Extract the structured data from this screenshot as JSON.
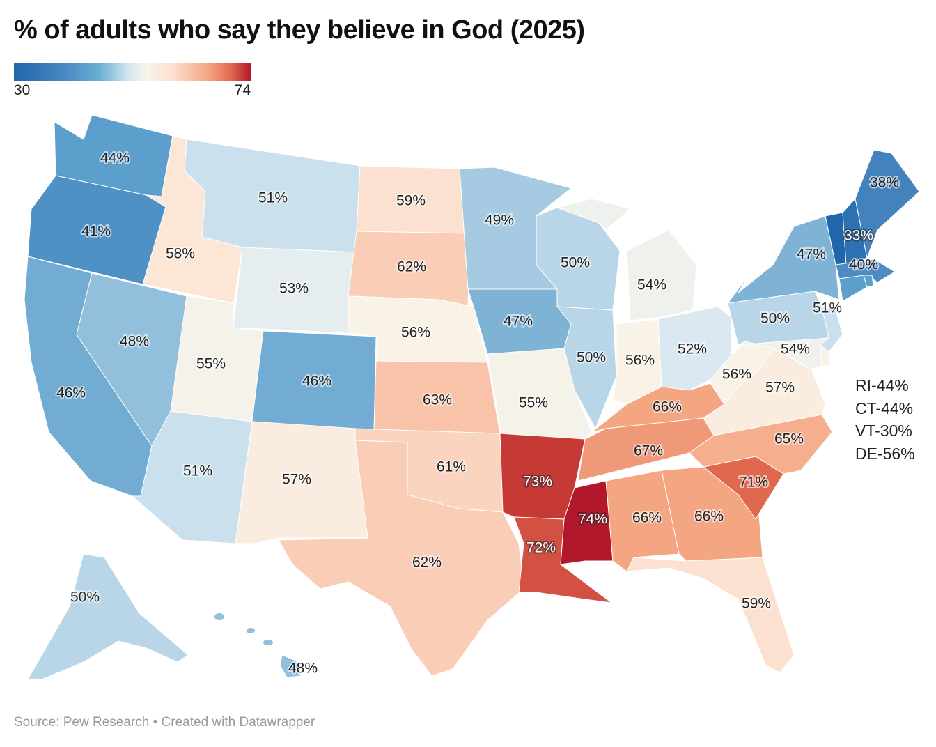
{
  "title": "% of adults who say they believe in God (2025)",
  "legend": {
    "min_label": "30",
    "max_label": "74",
    "min": 30,
    "max": 74,
    "colors": [
      "#2166ac",
      "#4a8ac2",
      "#6aaed3",
      "#d1e5f0",
      "#f7f4ea",
      "#fde0cf",
      "#f4a582",
      "#e0684e",
      "#b2182b"
    ]
  },
  "notes": [
    "RI-44%",
    "CT-44%",
    "VT-30%",
    "DE-56%"
  ],
  "footer": {
    "source": "Source: Pew Research",
    "credit": "• Created with Datawrapper"
  },
  "chart_data": {
    "type": "choropleth",
    "region": "United States",
    "unit": "%",
    "color_scale": "diverging blue-red",
    "values": {
      "WA": 44,
      "OR": 41,
      "CA": 46,
      "NV": 48,
      "ID": 58,
      "MT": 51,
      "WY": 53,
      "UT": 55,
      "CO": 46,
      "AZ": 51,
      "NM": 57,
      "ND": 59,
      "SD": 62,
      "NE": 56,
      "KS": 63,
      "OK": 61,
      "TX": 62,
      "MN": 49,
      "IA": 47,
      "MO": 55,
      "AR": 73,
      "LA": 72,
      "WI": 50,
      "IL": 50,
      "MI": 54,
      "IN": 56,
      "OH": 52,
      "KY": 66,
      "TN": 67,
      "MS": 74,
      "AL": 66,
      "GA": 66,
      "FL": 59,
      "SC": 71,
      "NC": 65,
      "VA": 57,
      "WV": 56,
      "PA": 50,
      "NY": 47,
      "VT": 30,
      "NH": 33,
      "ME": 38,
      "MA": 40,
      "CT": 44,
      "RI": 44,
      "NJ": 51,
      "DE": 56,
      "MD": 54,
      "AK": 50,
      "HI": 48
    },
    "labels": {
      "WA": "44%",
      "OR": "41%",
      "CA": "46%",
      "NV": "48%",
      "ID": "58%",
      "MT": "51%",
      "WY": "53%",
      "UT": "55%",
      "CO": "46%",
      "AZ": "51%",
      "NM": "57%",
      "ND": "59%",
      "SD": "62%",
      "NE": "56%",
      "KS": "63%",
      "OK": "61%",
      "TX": "62%",
      "MN": "49%",
      "IA": "47%",
      "MO": "55%",
      "AR": "73%",
      "LA": "72%",
      "WI": "50%",
      "IL": "50%",
      "MI": "54%",
      "IN": "56%",
      "OH": "52%",
      "KY": "66%",
      "TN": "67%",
      "MS": "74%",
      "AL": "66%",
      "GA": "66%",
      "FL": "59%",
      "SC": "71%",
      "NC": "65%",
      "VA": "57%",
      "WV": "56%",
      "PA": "50%",
      "NY": "47%",
      "NH": "33%",
      "ME": "38%",
      "MA": "40%",
      "NJ": "51%",
      "MD": "54%",
      "AK": "50%",
      "HI": "48%"
    }
  }
}
